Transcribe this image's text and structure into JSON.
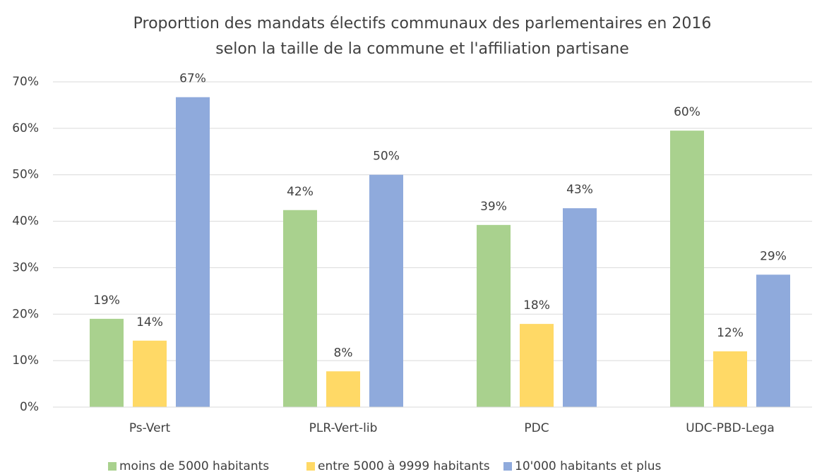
{
  "chart_data": {
    "type": "bar",
    "title": [
      "Proporttion des mandats électifs communaux des parlementaires en  2016",
      "selon la taille de la commune et l'affiliation partisane"
    ],
    "categories": [
      "Ps-Vert",
      "PLR-Vert-lib",
      "PDC",
      "UDC-PBD-Lega"
    ],
    "series": [
      {
        "name": "moins de 5000 habitants",
        "color": "#a9d18e",
        "values": [
          19.0,
          42.4,
          39.2,
          59.5
        ],
        "value_labels": [
          "19%",
          "42%",
          "39%",
          "60%"
        ]
      },
      {
        "name": "entre 5000 à 9999 habitants",
        "color": "#ffd966",
        "values": [
          14.3,
          7.7,
          17.9,
          12.0
        ],
        "value_labels": [
          "14%",
          "8%",
          "18%",
          "12%"
        ]
      },
      {
        "name": "10'000 habitants et plus",
        "color": "#8faadc",
        "values": [
          66.7,
          50.0,
          42.8,
          28.5
        ],
        "value_labels": [
          "67%",
          "50%",
          "43%",
          "29%"
        ]
      }
    ],
    "ylim": [
      0,
      70
    ],
    "yticks": [
      {
        "value": 0,
        "label": "0%"
      },
      {
        "value": 10,
        "label": "10%"
      },
      {
        "value": 20,
        "label": "20%"
      },
      {
        "value": 30,
        "label": "30%"
      },
      {
        "value": 40,
        "label": "40%"
      },
      {
        "value": 50,
        "label": "50%"
      },
      {
        "value": 60,
        "label": "60%"
      },
      {
        "value": 70,
        "label": "70%"
      }
    ],
    "grid": true,
    "legend": "bottom"
  }
}
